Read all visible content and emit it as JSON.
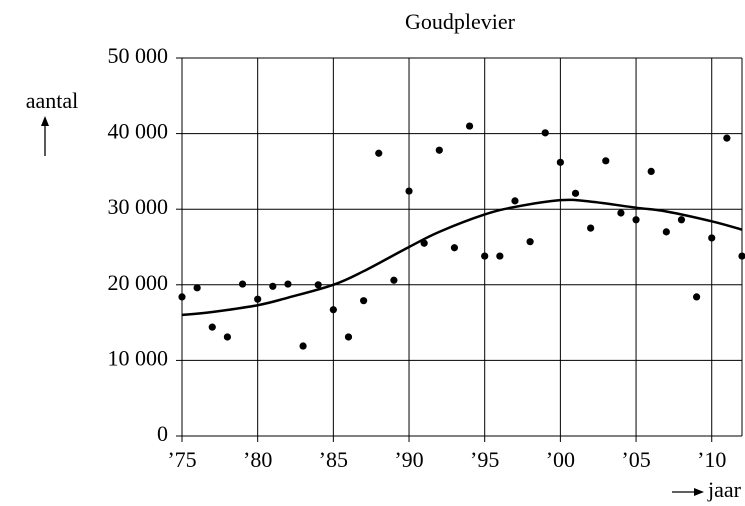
{
  "chart_data": {
    "type": "scatter",
    "title": "Goudplevier",
    "ylabel": "aantal",
    "xlabel": "jaar",
    "x": [
      1975,
      1976,
      1977,
      1978,
      1979,
      1980,
      1981,
      1982,
      1983,
      1984,
      1985,
      1986,
      1987,
      1988,
      1989,
      1990,
      1991,
      1992,
      1993,
      1994,
      1995,
      1996,
      1997,
      1998,
      1999,
      2000,
      2001,
      2002,
      2003,
      2004,
      2005,
      2006,
      2007,
      2008,
      2009,
      2010,
      2011,
      2012
    ],
    "values": [
      18400,
      19600,
      14400,
      13100,
      20100,
      18100,
      19800,
      20100,
      11900,
      20000,
      16700,
      13100,
      17900,
      37400,
      20600,
      32400,
      25500,
      37800,
      24900,
      41000,
      23800,
      23800,
      31100,
      25700,
      40100,
      36200,
      32100,
      27500,
      36400,
      29500,
      28600,
      35000,
      27000,
      28600,
      18400,
      26200,
      39400,
      23800
    ],
    "color": "#000000",
    "trend": {
      "x": [
        1975,
        1977,
        1980,
        1982,
        1985,
        1987,
        1990,
        1992,
        1995,
        1997,
        2000,
        2002,
        2005,
        2007,
        2010,
        2012
      ],
      "values": [
        16000,
        16400,
        17300,
        18300,
        20000,
        21800,
        25000,
        27000,
        29300,
        30300,
        31200,
        31000,
        30200,
        29700,
        28400,
        27300
      ]
    },
    "xlim": [
      1975,
      2012
    ],
    "ylim": [
      0,
      50000
    ],
    "xticks": [
      {
        "value": 1975,
        "label": "’75"
      },
      {
        "value": 1980,
        "label": "’80"
      },
      {
        "value": 1985,
        "label": "’85"
      },
      {
        "value": 1990,
        "label": "’90"
      },
      {
        "value": 1995,
        "label": "’95"
      },
      {
        "value": 2000,
        "label": "’00"
      },
      {
        "value": 2005,
        "label": "’05"
      },
      {
        "value": 2010,
        "label": "’10"
      }
    ],
    "yticks": [
      0,
      {
        "value": 10000,
        "label": "10 000"
      },
      {
        "value": 20000,
        "label": "20 000"
      },
      {
        "value": 30000,
        "label": "30 000"
      },
      {
        "value": 40000,
        "label": "40 000"
      },
      {
        "value": 50000,
        "label": "50 000"
      }
    ],
    "grid": true
  }
}
